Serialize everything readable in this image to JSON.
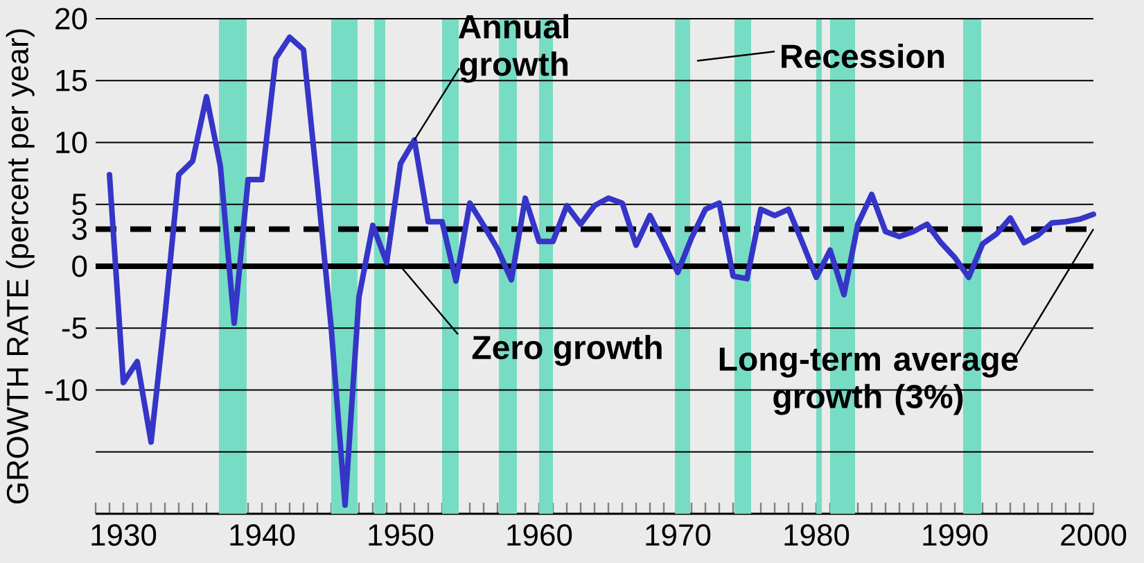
{
  "chart_data": {
    "type": "line",
    "ylabel": "GROWTH RATE  (percent per year)",
    "x": [
      1929,
      1930,
      1931,
      1932,
      1933,
      1934,
      1935,
      1936,
      1937,
      1938,
      1939,
      1940,
      1941,
      1942,
      1943,
      1944,
      1945,
      1946,
      1947,
      1948,
      1949,
      1950,
      1951,
      1952,
      1953,
      1954,
      1955,
      1956,
      1957,
      1958,
      1959,
      1960,
      1961,
      1962,
      1963,
      1964,
      1965,
      1966,
      1967,
      1968,
      1969,
      1970,
      1971,
      1972,
      1973,
      1974,
      1975,
      1976,
      1977,
      1978,
      1979,
      1980,
      1981,
      1982,
      1983,
      1984,
      1985,
      1986,
      1987,
      1988,
      1989,
      1990,
      1991,
      1992,
      1993,
      1994,
      1995,
      1996,
      1997,
      1998,
      1999,
      2000
    ],
    "series": [
      {
        "color": "#3535c8",
        "values": [
          7.4,
          -9.4,
          -7.7,
          -14.2,
          -4.0,
          7.4,
          8.5,
          13.7,
          8.1,
          -4.6,
          7.0,
          7.0,
          16.8,
          18.5,
          17.5,
          6.6,
          -5.0,
          -19.3,
          -2.5,
          3.3,
          0.3,
          8.3,
          10.2,
          3.6,
          3.6,
          -1.2,
          5.1,
          3.3,
          1.4,
          -1.1,
          5.5,
          2.0,
          2.0,
          4.9,
          3.4,
          4.9,
          5.5,
          5.1,
          1.7,
          4.1,
          1.9,
          -0.5,
          2.3,
          4.6,
          5.1,
          -0.8,
          -1.0,
          4.6,
          4.1,
          4.6,
          1.9,
          -0.9,
          1.3,
          -2.3,
          3.4,
          5.8,
          2.8,
          2.4,
          2.8,
          3.4,
          1.9,
          0.7,
          -0.9,
          1.8,
          2.6,
          3.9,
          1.9,
          2.5,
          3.5,
          3.6,
          3.8,
          4.2
        ]
      }
    ],
    "xlim": [
      1928,
      2000
    ],
    "ylim": [
      -20,
      20
    ],
    "xticks": [
      {
        "value": 1928,
        "label": null
      },
      {
        "value": 1929,
        "label": null
      },
      1930,
      {
        "value": 1931,
        "label": null
      },
      {
        "value": 1932,
        "label": null
      },
      {
        "value": 1933,
        "label": null
      },
      {
        "value": 1934,
        "label": null
      },
      {
        "value": 1935,
        "label": null
      },
      {
        "value": 1936,
        "label": null
      },
      {
        "value": 1937,
        "label": null
      },
      {
        "value": 1938,
        "label": null
      },
      {
        "value": 1939,
        "label": null
      },
      1940,
      {
        "value": 1941,
        "label": null
      },
      {
        "value": 1942,
        "label": null
      },
      {
        "value": 1943,
        "label": null
      },
      {
        "value": 1944,
        "label": null
      },
      {
        "value": 1945,
        "label": null
      },
      {
        "value": 1946,
        "label": null
      },
      {
        "value": 1947,
        "label": null
      },
      {
        "value": 1948,
        "label": null
      },
      {
        "value": 1949,
        "label": null
      },
      1950,
      {
        "value": 1951,
        "label": null
      },
      {
        "value": 1952,
        "label": null
      },
      {
        "value": 1953,
        "label": null
      },
      {
        "value": 1954,
        "label": null
      },
      {
        "value": 1955,
        "label": null
      },
      {
        "value": 1956,
        "label": null
      },
      {
        "value": 1957,
        "label": null
      },
      {
        "value": 1958,
        "label": null
      },
      {
        "value": 1959,
        "label": null
      },
      1960,
      {
        "value": 1961,
        "label": null
      },
      {
        "value": 1962,
        "label": null
      },
      {
        "value": 1963,
        "label": null
      },
      {
        "value": 1964,
        "label": null
      },
      {
        "value": 1965,
        "label": null
      },
      {
        "value": 1966,
        "label": null
      },
      {
        "value": 1967,
        "label": null
      },
      {
        "value": 1968,
        "label": null
      },
      {
        "value": 1969,
        "label": null
      },
      1970,
      {
        "value": 1971,
        "label": null
      },
      {
        "value": 1972,
        "label": null
      },
      {
        "value": 1973,
        "label": null
      },
      {
        "value": 1974,
        "label": null
      },
      {
        "value": 1975,
        "label": null
      },
      {
        "value": 1976,
        "label": null
      },
      {
        "value": 1977,
        "label": null
      },
      {
        "value": 1978,
        "label": null
      },
      {
        "value": 1979,
        "label": null
      },
      1980,
      {
        "value": 1981,
        "label": null
      },
      {
        "value": 1982,
        "label": null
      },
      {
        "value": 1983,
        "label": null
      },
      {
        "value": 1984,
        "label": null
      },
      {
        "value": 1985,
        "label": null
      },
      {
        "value": 1986,
        "label": null
      },
      {
        "value": 1987,
        "label": null
      },
      {
        "value": 1988,
        "label": null
      },
      {
        "value": 1989,
        "label": null
      },
      1990,
      {
        "value": 1991,
        "label": null
      },
      {
        "value": 1992,
        "label": null
      },
      {
        "value": 1993,
        "label": null
      },
      {
        "value": 1994,
        "label": null
      },
      {
        "value": 1995,
        "label": null
      },
      {
        "value": 1996,
        "label": null
      },
      {
        "value": 1997,
        "label": null
      },
      {
        "value": 1998,
        "label": null
      },
      {
        "value": 1999,
        "label": null
      },
      2000
    ],
    "yticks": [
      20,
      15,
      10,
      5,
      3,
      0,
      -5,
      -10,
      {
        "value": -15,
        "label": null
      }
    ],
    "grid": "y",
    "marker": "none",
    "line_style": "solid",
    "ref_lines": [
      {
        "axis": "y",
        "value": 0,
        "color": "#000000",
        "line_style": "solid"
      },
      {
        "axis": "y",
        "value": 3,
        "color": "#000000",
        "line_style": "dashed"
      }
    ],
    "bands": [
      {
        "axis": "x",
        "from": 1936.9,
        "to": 1938.9,
        "color": "#77dcc4"
      },
      {
        "axis": "x",
        "from": 1945.0,
        "to": 1946.9,
        "color": "#77dcc4"
      },
      {
        "axis": "x",
        "from": 1948.1,
        "to": 1948.9,
        "color": "#77dcc4"
      },
      {
        "axis": "x",
        "from": 1953.0,
        "to": 1954.2,
        "color": "#77dcc4"
      },
      {
        "axis": "x",
        "from": 1957.1,
        "to": 1958.4,
        "color": "#77dcc4"
      },
      {
        "axis": "x",
        "from": 1960.0,
        "to": 1961.0,
        "color": "#77dcc4"
      },
      {
        "axis": "x",
        "from": 1969.8,
        "to": 1970.9,
        "color": "#77dcc4",
        "label": "Recession"
      },
      {
        "axis": "x",
        "from": 1974.1,
        "to": 1975.3,
        "color": "#77dcc4"
      },
      {
        "axis": "x",
        "from": 1980.0,
        "to": 1980.4,
        "color": "#77dcc4"
      },
      {
        "axis": "x",
        "from": 1981.0,
        "to": 1982.8,
        "color": "#77dcc4"
      },
      {
        "axis": "x",
        "from": 1990.6,
        "to": 1991.9,
        "color": "#77dcc4"
      }
    ],
    "annotations": [
      {
        "text": "Annual growth",
        "x": 1951,
        "y": 10.2
      },
      {
        "text": "Zero growth",
        "x": 1950,
        "y": 0
      },
      {
        "text": "Long-term average growth (3%)",
        "x": 2000,
        "y": 3
      }
    ]
  }
}
